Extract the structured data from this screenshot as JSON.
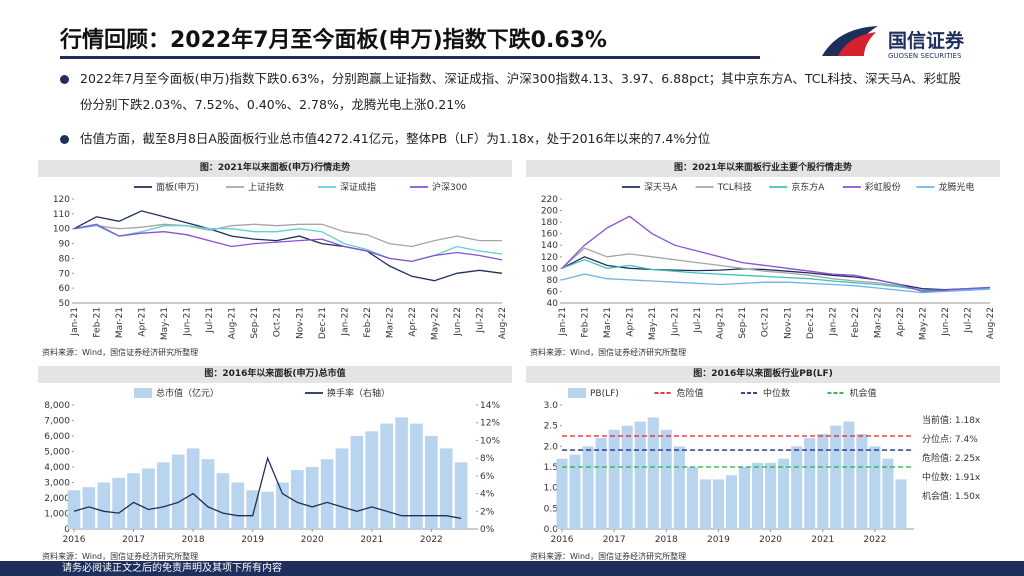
{
  "header": {
    "title": "行情回顾：2022年7月至今面板(申万)指数下跌0.63%",
    "logo": "国信证券",
    "logo_sub": "GUOSEN SECURITIES"
  },
  "bullets": [
    "2022年7月至今面板(申万)指数下跌0.63%，分别跑赢上证指数、深证成指、沪深300指数4.13、3.97、6.88pct；其中京东方A、TCL科技、深天马A、彩虹股份分别下跌2.03%、7.52%、0.40%、2.78%，龙腾光电上涨0.21%",
    "估值方面，截至8月8日A股面板行业总市值4272.41亿元，整体PB（LF）为1.18x，处于2016年以来的7.4%分位"
  ],
  "footer": "请务必阅读正文之后的免责声明及其项下所有内容",
  "chart_data": [
    {
      "type": "line",
      "title": "图：2021年以来面板(申万)行情走势",
      "source": "资料来源：Wind，国信证券经济研究所整理",
      "categories": [
        "Jan-21",
        "Feb-21",
        "Mar-21",
        "Apr-21",
        "May-21",
        "Jun-21",
        "Jul-21",
        "Aug-21",
        "Sep-21",
        "Oct-21",
        "Nov-21",
        "Dec-21",
        "Jan-22",
        "Feb-22",
        "Mar-22",
        "Apr-22",
        "May-22",
        "Jun-22",
        "Jul-22",
        "Aug-22"
      ],
      "series": [
        {
          "name": "面板(申万)",
          "color": "#1f2f5c",
          "values": [
            100,
            108,
            105,
            112,
            108,
            104,
            100,
            95,
            93,
            92,
            95,
            90,
            88,
            85,
            75,
            68,
            65,
            70,
            72,
            70
          ]
        },
        {
          "name": "上证指数",
          "color": "#a6a6a6",
          "values": [
            100,
            102,
            100,
            101,
            103,
            102,
            99,
            102,
            103,
            102,
            103,
            103,
            98,
            96,
            90,
            88,
            92,
            95,
            92,
            92
          ]
        },
        {
          "name": "深证成指",
          "color": "#5fd0d8",
          "values": [
            100,
            102,
            95,
            98,
            102,
            102,
            100,
            100,
            98,
            98,
            100,
            98,
            90,
            86,
            80,
            78,
            82,
            88,
            85,
            83
          ]
        },
        {
          "name": "沪深300",
          "color": "#8a4fd6",
          "values": [
            100,
            103,
            95,
            97,
            98,
            96,
            92,
            88,
            90,
            91,
            92,
            93,
            88,
            85,
            80,
            78,
            82,
            84,
            82,
            79
          ]
        }
      ],
      "ylim": [
        50,
        120
      ],
      "yticks": [
        50,
        60,
        70,
        80,
        90,
        100,
        110,
        120
      ]
    },
    {
      "type": "line",
      "title": "图：2021年以来面板行业主要个股行情走势",
      "source": "资料来源：Wind，国信证券经济研究所整理",
      "categories": [
        "Jan-21",
        "Feb-21",
        "Mar-21",
        "Apr-21",
        "May-21",
        "Jun-21",
        "Jul-21",
        "Aug-21",
        "Sep-21",
        "Oct-21",
        "Nov-21",
        "Dec-21",
        "Jan-22",
        "Feb-22",
        "Mar-22",
        "Apr-22",
        "May-22",
        "Jun-22",
        "Jul-22",
        "Aug-22"
      ],
      "series": [
        {
          "name": "深天马A",
          "color": "#1f2f5c",
          "values": [
            100,
            120,
            105,
            100,
            98,
            97,
            96,
            97,
            99,
            98,
            95,
            92,
            88,
            85,
            80,
            72,
            65,
            63,
            65,
            66
          ]
        },
        {
          "name": "TCL科技",
          "color": "#a6a6a6",
          "values": [
            100,
            135,
            120,
            125,
            120,
            115,
            110,
            105,
            100,
            95,
            92,
            88,
            82,
            78,
            75,
            70,
            62,
            62,
            65,
            67
          ]
        },
        {
          "name": "京东方A",
          "color": "#40c0b8",
          "values": [
            100,
            115,
            100,
            105,
            98,
            95,
            92,
            90,
            88,
            86,
            84,
            82,
            78,
            75,
            72,
            68,
            62,
            62,
            64,
            66
          ]
        },
        {
          "name": "彩虹股份",
          "color": "#8a4fd6",
          "values": [
            100,
            140,
            170,
            190,
            160,
            140,
            130,
            120,
            110,
            105,
            100,
            95,
            90,
            88,
            80,
            72,
            60,
            62,
            65,
            67
          ]
        },
        {
          "name": "龙腾光电",
          "color": "#6fb3e8",
          "values": [
            80,
            90,
            82,
            80,
            78,
            76,
            74,
            72,
            74,
            76,
            76,
            74,
            72,
            70,
            66,
            62,
            58,
            60,
            62,
            64
          ]
        }
      ],
      "ylim": [
        40,
        220
      ],
      "yticks": [
        40,
        60,
        80,
        100,
        120,
        140,
        160,
        180,
        200,
        220
      ]
    },
    {
      "type": "bar",
      "title": "图：2016年以来面板(申万)总市值",
      "source": "资料来源：Wind，国信证券经济研究所整理",
      "x": [
        2016,
        2016.25,
        2016.5,
        2016.75,
        2017,
        2017.25,
        2017.5,
        2017.75,
        2018,
        2018.25,
        2018.5,
        2018.75,
        2019,
        2019.25,
        2019.5,
        2019.75,
        2020,
        2020.25,
        2020.5,
        2020.75,
        2021,
        2021.25,
        2021.5,
        2021.75,
        2022,
        2022.25,
        2022.5
      ],
      "series": [
        {
          "name": "总市值（亿元）",
          "color": "#b8d4ee",
          "values": [
            2500,
            2700,
            3000,
            3300,
            3600,
            3900,
            4300,
            4800,
            5200,
            4500,
            3600,
            3000,
            2500,
            2400,
            3000,
            3800,
            4000,
            4500,
            5200,
            6000,
            6300,
            6800,
            7200,
            6800,
            6000,
            5200,
            4300
          ]
        },
        {
          "name": "换手率（右轴）",
          "color": "#1f2f5c",
          "type": "line",
          "axis": "y2",
          "values": [
            2,
            2.5,
            2,
            1.8,
            3,
            2.2,
            2.5,
            3,
            4,
            2.5,
            1.8,
            1.5,
            1.5,
            8,
            4,
            3,
            2.5,
            3,
            2.5,
            2,
            2.5,
            2,
            1.5,
            1.5,
            1.5,
            1.5,
            1.2
          ]
        }
      ],
      "xlim": [
        2016,
        2022.75
      ],
      "xticks": [
        2016,
        2017,
        2018,
        2019,
        2020,
        2021,
        2022
      ],
      "ylim": [
        0,
        8000
      ],
      "yticks": [
        0,
        {
          "value": 1000,
          "label": "1,000"
        },
        {
          "value": 2000,
          "label": "2,000"
        },
        {
          "value": 3000,
          "label": "3,000"
        },
        {
          "value": 4000,
          "label": "4,000"
        },
        {
          "value": 5000,
          "label": "5,000"
        },
        {
          "value": 6000,
          "label": "6,000"
        },
        {
          "value": 7000,
          "label": "7,000"
        },
        {
          "value": 8000,
          "label": "8,000"
        }
      ],
      "y2lim": [
        0,
        14
      ],
      "y2ticks": [
        {
          "value": 0,
          "label": "0%"
        },
        {
          "value": 2,
          "label": "2%"
        },
        {
          "value": 4,
          "label": "4%"
        },
        {
          "value": 6,
          "label": "6%"
        },
        {
          "value": 8,
          "label": "8%"
        },
        {
          "value": 10,
          "label": "10%"
        },
        {
          "value": 12,
          "label": "12%"
        },
        {
          "value": 14,
          "label": "14%"
        }
      ]
    },
    {
      "type": "bar",
      "title": "图：2016年以来面板行业PB(LF)",
      "source": "资料来源：Wind，国信证券经济研究所整理",
      "x": [
        2016,
        2016.25,
        2016.5,
        2016.75,
        2017,
        2017.25,
        2017.5,
        2017.75,
        2018,
        2018.25,
        2018.5,
        2018.75,
        2019,
        2019.25,
        2019.5,
        2019.75,
        2020,
        2020.25,
        2020.5,
        2020.75,
        2021,
        2021.25,
        2021.5,
        2021.75,
        2022,
        2022.25,
        2022.5
      ],
      "series": [
        {
          "name": "PB(LF)",
          "color": "#b8d4ee",
          "values": [
            1.7,
            1.8,
            2.0,
            2.2,
            2.4,
            2.5,
            2.6,
            2.7,
            2.4,
            2.0,
            1.5,
            1.2,
            1.2,
            1.3,
            1.5,
            1.6,
            1.6,
            1.7,
            2.0,
            2.2,
            2.3,
            2.5,
            2.6,
            2.3,
            2.0,
            1.7,
            1.2
          ]
        }
      ],
      "reference_lines": [
        {
          "name": "危险值",
          "value": 2.25,
          "color": "#e02020"
        },
        {
          "name": "中位数",
          "value": 1.91,
          "color": "#1f2f8c"
        },
        {
          "name": "机会值",
          "value": 1.5,
          "color": "#20b040"
        }
      ],
      "annotations": [
        "当前值: 1.18x",
        "分位点: 7.4%",
        "危险值: 2.25x",
        "中位数: 1.91x",
        "机会值: 1.50x"
      ],
      "xlim": [
        2016,
        2022.75
      ],
      "xticks": [
        2016,
        2017,
        2018,
        2019,
        2020,
        2021,
        2022
      ],
      "ylim": [
        0,
        3
      ],
      "yticks": [
        {
          "value": 0,
          "label": "0.0"
        },
        {
          "value": 0.5,
          "label": "0.5"
        },
        {
          "value": 1,
          "label": "1.0"
        },
        {
          "value": 1.5,
          "label": "1.5"
        },
        {
          "value": 2,
          "label": "2.0"
        },
        {
          "value": 2.5,
          "label": "2.5"
        },
        {
          "value": 3,
          "label": "3.0"
        }
      ]
    }
  ]
}
